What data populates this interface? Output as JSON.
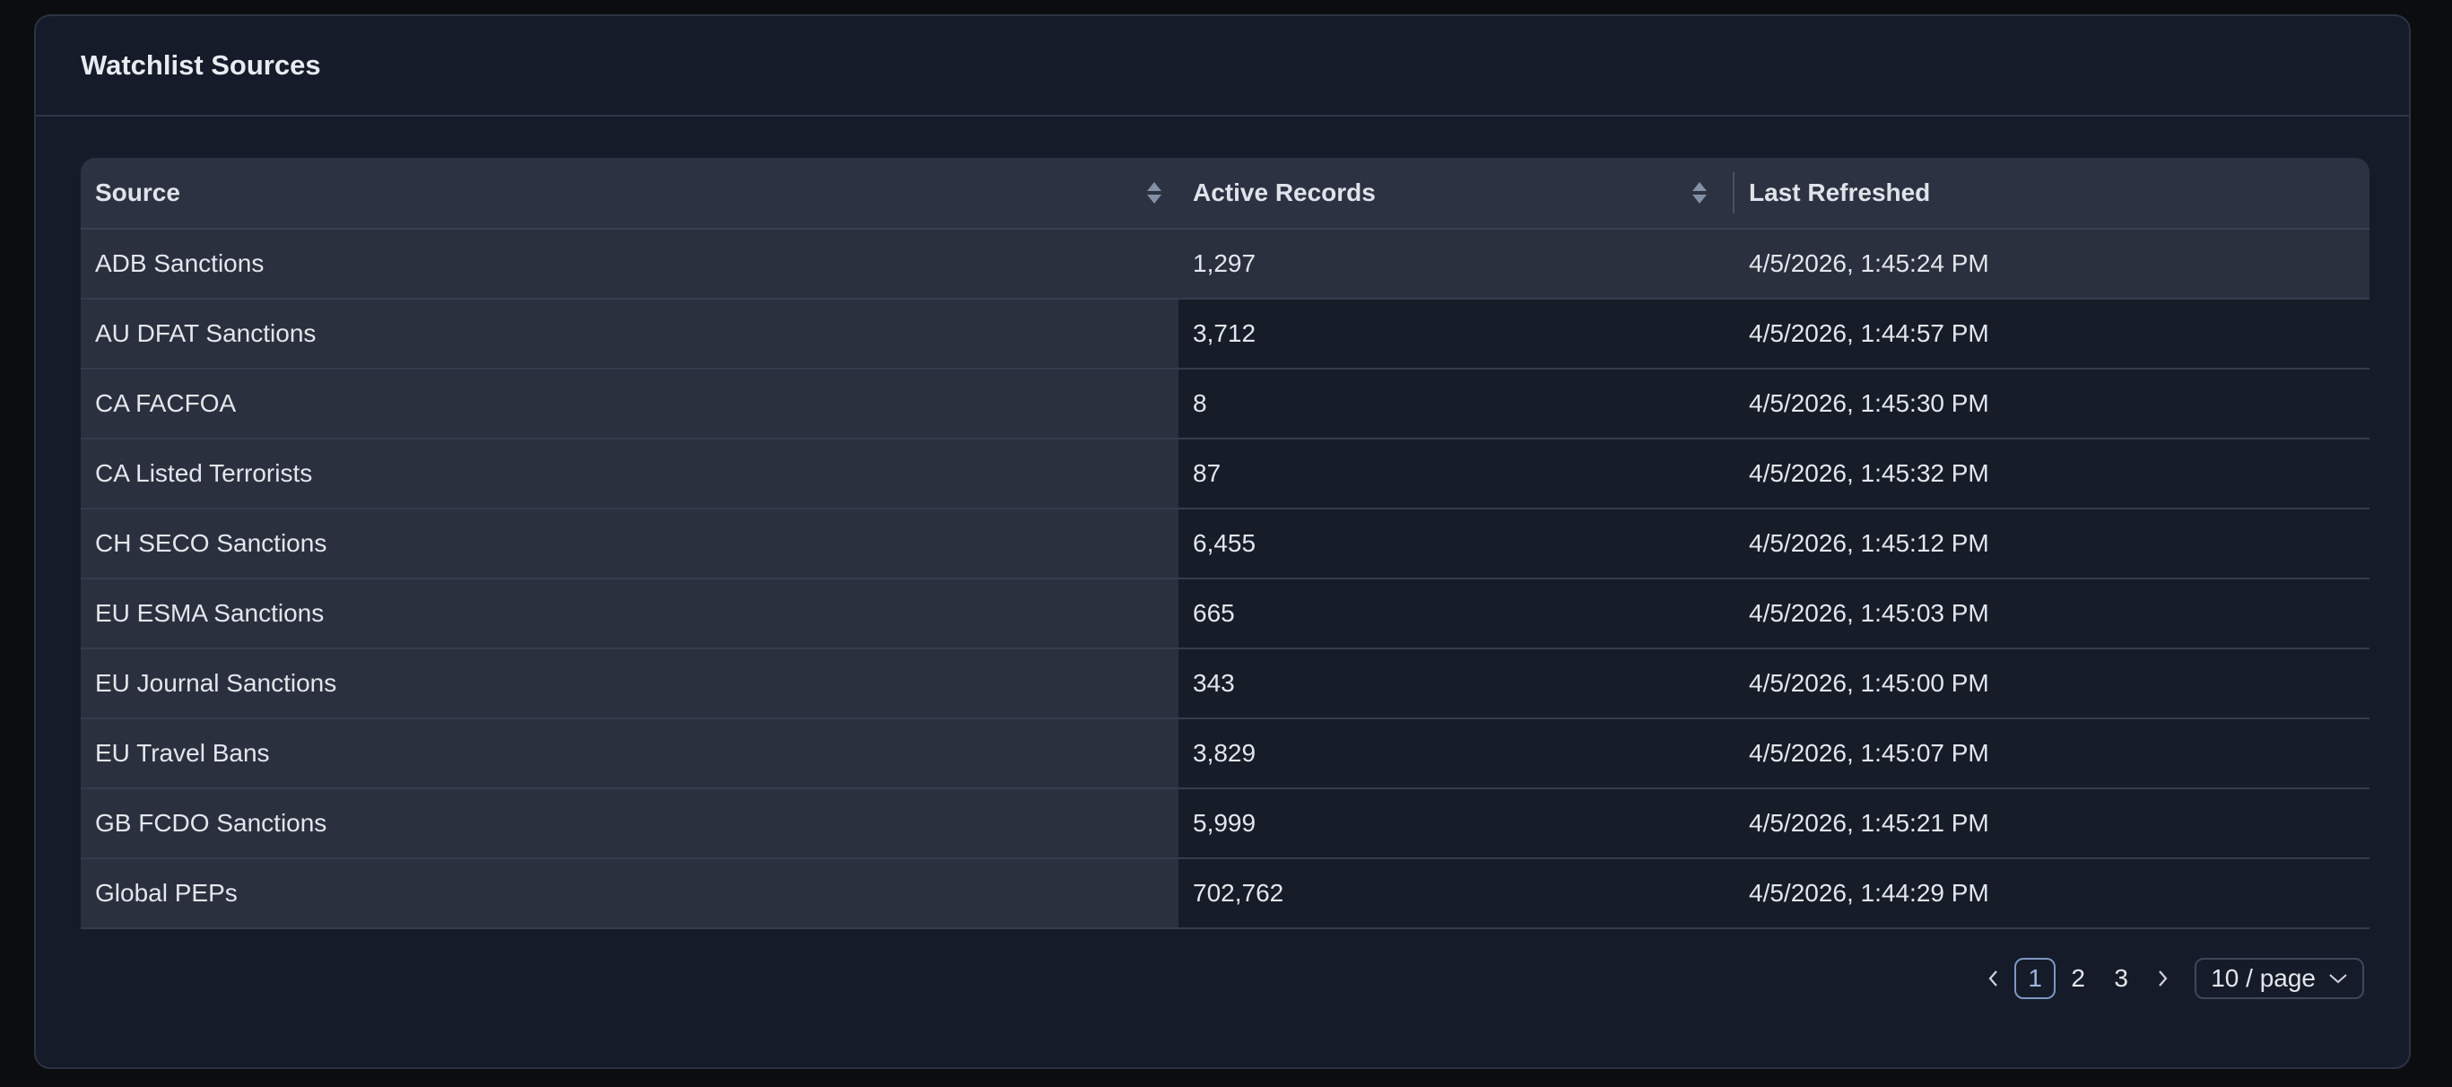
{
  "card": {
    "title": "Watchlist Sources"
  },
  "table": {
    "columns": [
      {
        "label": "Source",
        "sortable": true
      },
      {
        "label": "Active Records",
        "sortable": true
      },
      {
        "label": "Last Refreshed",
        "sortable": false
      }
    ],
    "rows": [
      {
        "source": "ADB Sanctions",
        "active_records": "1,297",
        "last_refreshed": "4/5/2026, 1:45:24 PM"
      },
      {
        "source": "AU DFAT Sanctions",
        "active_records": "3,712",
        "last_refreshed": "4/5/2026, 1:44:57 PM"
      },
      {
        "source": "CA FACFOA",
        "active_records": "8",
        "last_refreshed": "4/5/2026, 1:45:30 PM"
      },
      {
        "source": "CA Listed Terrorists",
        "active_records": "87",
        "last_refreshed": "4/5/2026, 1:45:32 PM"
      },
      {
        "source": "CH SECO Sanctions",
        "active_records": "6,455",
        "last_refreshed": "4/5/2026, 1:45:12 PM"
      },
      {
        "source": "EU ESMA Sanctions",
        "active_records": "665",
        "last_refreshed": "4/5/2026, 1:45:03 PM"
      },
      {
        "source": "EU Journal Sanctions",
        "active_records": "343",
        "last_refreshed": "4/5/2026, 1:45:00 PM"
      },
      {
        "source": "EU Travel Bans",
        "active_records": "3,829",
        "last_refreshed": "4/5/2026, 1:45:07 PM"
      },
      {
        "source": "GB FCDO Sanctions",
        "active_records": "5,999",
        "last_refreshed": "4/5/2026, 1:45:21 PM"
      },
      {
        "source": "Global PEPs",
        "active_records": "702,762",
        "last_refreshed": "4/5/2026, 1:44:29 PM"
      }
    ]
  },
  "pagination": {
    "prev_icon": "chevron-left-icon",
    "next_icon": "chevron-right-icon",
    "pages": [
      "1",
      "2",
      "3"
    ],
    "current_page": "1",
    "page_size_label": "10 / page",
    "dropdown_icon": "chevron-down-icon"
  },
  "colors": {
    "page_bg": "#0c0d11",
    "card_bg": "#151b28",
    "header_bg": "#2c3241",
    "source_col_bg": "#2a303e",
    "accent": "#7d97c4"
  }
}
